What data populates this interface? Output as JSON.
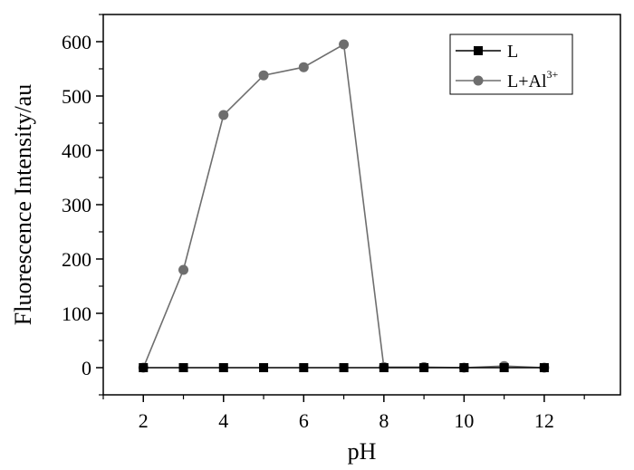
{
  "chart_data": {
    "type": "line",
    "xlabel": "pH",
    "ylabel": "Fluorescence Intensity/au",
    "xlim": [
      1,
      13.9
    ],
    "ylim": [
      -50,
      650
    ],
    "xticks": [
      2,
      4,
      6,
      8,
      10,
      12
    ],
    "yticks": [
      0,
      100,
      200,
      300,
      400,
      500,
      600
    ],
    "grid": false,
    "legend_position": "top-right",
    "series": [
      {
        "name": "L",
        "color": "#000000",
        "marker": "square",
        "x": [
          2,
          3,
          4,
          5,
          6,
          7,
          8,
          9,
          10,
          11,
          12
        ],
        "y": [
          0,
          0,
          0,
          0,
          0,
          0,
          0,
          0,
          0,
          0,
          0
        ]
      },
      {
        "name": "L+Al",
        "name_superscript": "3+",
        "color": "#6e6e6e",
        "marker": "circle",
        "x": [
          2,
          3,
          4,
          5,
          6,
          7,
          8,
          9,
          10,
          11,
          12
        ],
        "y": [
          0,
          180,
          465,
          538,
          553,
          595,
          1,
          1,
          0,
          3,
          0
        ]
      }
    ]
  }
}
